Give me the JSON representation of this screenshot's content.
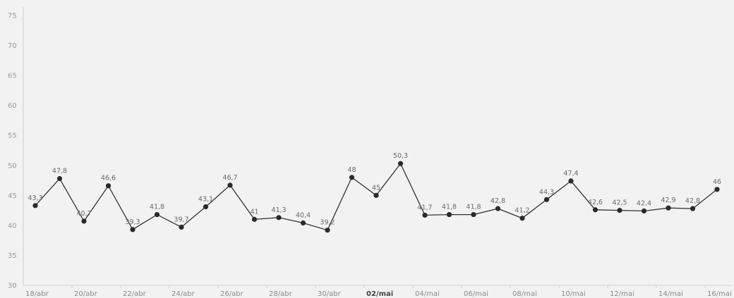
{
  "chart_data": {
    "type": "line",
    "title": "",
    "xlabel": "",
    "ylabel": "",
    "ylim": [
      30,
      75
    ],
    "y_ticks": [
      30,
      35,
      40,
      45,
      50,
      55,
      60,
      65,
      70,
      75
    ],
    "grid": false,
    "x_tick_labels": [
      {
        "label": "18/abr",
        "bold": false
      },
      {
        "label": "20/abr",
        "bold": false
      },
      {
        "label": "22/abr",
        "bold": false
      },
      {
        "label": "24/abr",
        "bold": false
      },
      {
        "label": "26/abr",
        "bold": false
      },
      {
        "label": "28/abr",
        "bold": false
      },
      {
        "label": "30/abr",
        "bold": false
      },
      {
        "label": "02/mai",
        "bold": true
      },
      {
        "label": "04/mai",
        "bold": false
      },
      {
        "label": "06/mai",
        "bold": false
      },
      {
        "label": "08/mai",
        "bold": false
      },
      {
        "label": "10/mai",
        "bold": false
      },
      {
        "label": "12/mai",
        "bold": false
      },
      {
        "label": "14/mai",
        "bold": false
      },
      {
        "label": "16/mai",
        "bold": false
      }
    ],
    "series": [
      {
        "values": [
          43.3,
          47.8,
          40.7,
          46.6,
          39.3,
          41.8,
          39.7,
          43.1,
          46.7,
          41,
          41.3,
          40.4,
          39.2,
          48,
          45,
          50.3,
          41.7,
          41.8,
          41.8,
          42.8,
          41.2,
          44.3,
          47.4,
          42.6,
          42.5,
          42.4,
          42.9,
          42.8,
          46
        ],
        "labels": [
          "43,3",
          "47,8",
          "40,7",
          "46,6",
          "39,3",
          "41,8",
          "39,7",
          "43,1",
          "46,7",
          "41",
          "41,3",
          "40,4",
          "39,2",
          "48",
          "45",
          "50,3",
          "41,7",
          "41,8",
          "41,8",
          "42,8",
          "41,2",
          "44,3",
          "47,4",
          "42,6",
          "42,5",
          "42,4",
          "42,9",
          "42,8",
          "46"
        ]
      }
    ],
    "line_color": "#333333",
    "axis_color": "#cfcfcf",
    "background": "#f2f2f2"
  }
}
